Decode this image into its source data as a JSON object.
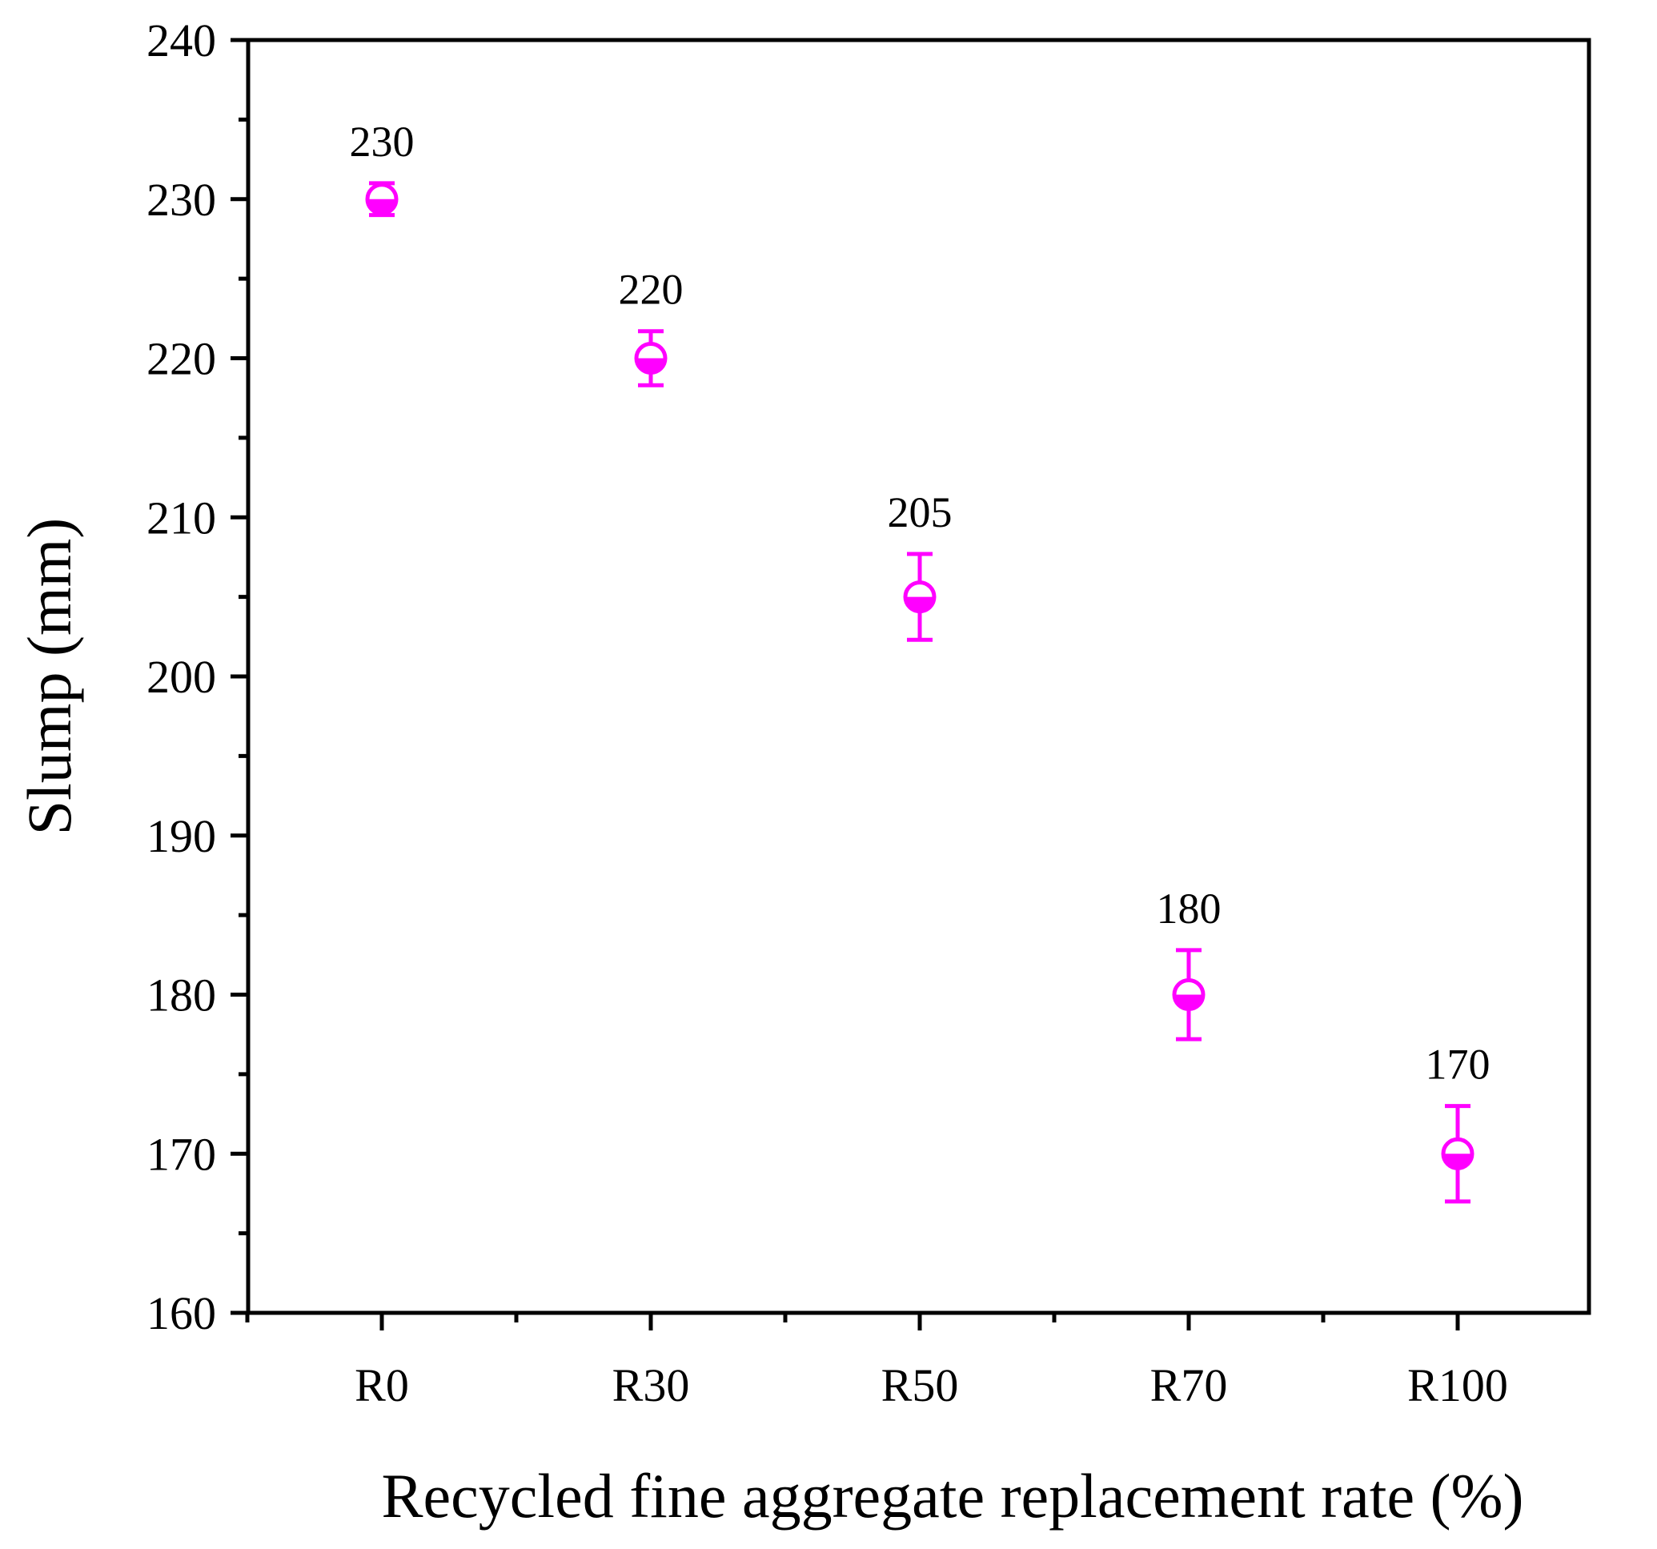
{
  "chart_data": {
    "type": "scatter",
    "title": "",
    "xlabel": "Recycled fine aggregate replacement rate (%)",
    "ylabel": "Slump (mm)",
    "categories": [
      "R0",
      "R30",
      "R50",
      "R70",
      "R100"
    ],
    "series": [
      {
        "values": [
          230,
          220,
          205,
          180,
          170
        ],
        "error": [
          1,
          1.7,
          2.7,
          2.8,
          3.0
        ],
        "data_labels": [
          "230",
          "220",
          "205",
          "180",
          "170"
        ],
        "color": "#ff00ff",
        "marker": "half-filled-circle"
      }
    ],
    "ylim": [
      160,
      240
    ],
    "yticks": [
      "160",
      "170",
      "180",
      "190",
      "200",
      "210",
      "220",
      "230",
      "240"
    ],
    "grid": false,
    "legend": "none"
  }
}
